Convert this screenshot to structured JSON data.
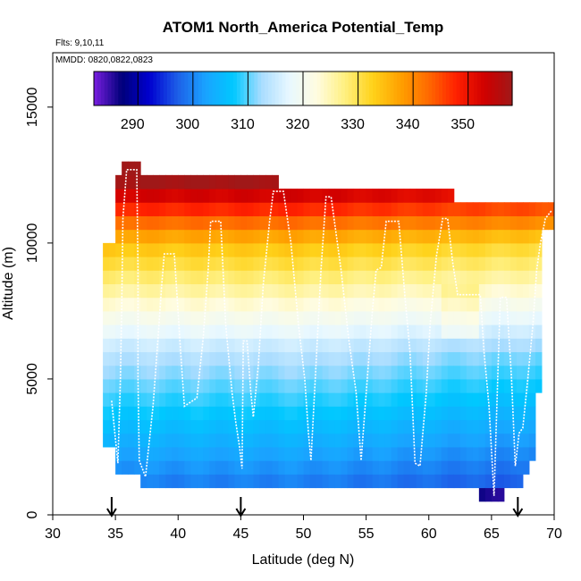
{
  "chart_data": {
    "type": "heatmap",
    "title": "ATOM1 North_America Potential_Temp",
    "flights_label": "Flts: 9,10,11",
    "dates_label": "MMDD: 0820,0822,0823",
    "xlabel": "Latitude (deg N)",
    "ylabel": "Altitude (m)",
    "xlim": [
      30,
      70
    ],
    "ylim": [
      0,
      17000
    ],
    "x_ticks": [
      30,
      35,
      40,
      45,
      50,
      55,
      60,
      65,
      70
    ],
    "y_ticks": [
      0,
      5000,
      10000,
      15000
    ],
    "colorbar": {
      "range": [
        282,
        358
      ],
      "ticks": [
        290,
        300,
        310,
        320,
        330,
        340,
        350
      ],
      "colors": [
        "#7a1fe0",
        "#00007a",
        "#0000d0",
        "#1d5fe8",
        "#1aa3ff",
        "#00c8ff",
        "#a8dcff",
        "#e8f8ff",
        "#fffce0",
        "#fff080",
        "#ffd21a",
        "#ffa000",
        "#ff6a00",
        "#ff2000",
        "#d00000",
        "#a01818"
      ]
    },
    "arrow_latitudes": [
      34.7,
      45,
      67.1
    ],
    "coverage": [
      [
        34,
        2500,
        10000
      ],
      [
        34.5,
        2500,
        10000
      ],
      [
        35,
        1500,
        12500
      ],
      [
        35.5,
        1500,
        13000
      ],
      [
        36,
        1500,
        13000
      ],
      [
        36.5,
        1500,
        13000
      ],
      [
        37,
        1000,
        12500
      ],
      [
        37.5,
        1000,
        12500
      ],
      [
        38,
        1000,
        12500
      ],
      [
        38.5,
        1000,
        12500
      ],
      [
        39,
        1000,
        12500
      ],
      [
        39.5,
        1000,
        12500
      ],
      [
        40,
        1000,
        12500
      ],
      [
        40.5,
        1000,
        12500
      ],
      [
        41,
        1000,
        12500
      ],
      [
        41.5,
        1000,
        12500
      ],
      [
        42,
        1000,
        12500
      ],
      [
        42.5,
        1000,
        12500
      ],
      [
        43,
        1000,
        12500
      ],
      [
        43.5,
        1000,
        12500
      ],
      [
        44,
        1000,
        12500
      ],
      [
        44.5,
        1000,
        12500
      ],
      [
        45,
        1000,
        12500
      ],
      [
        45.5,
        1000,
        12500
      ],
      [
        46,
        1000,
        12500
      ],
      [
        46.5,
        1000,
        12500
      ],
      [
        47,
        1000,
        12500
      ],
      [
        47.5,
        1000,
        12500
      ],
      [
        48,
        1000,
        12000
      ],
      [
        48.5,
        1000,
        12000
      ],
      [
        49,
        1000,
        12000
      ],
      [
        49.5,
        1000,
        12000
      ],
      [
        50,
        1000,
        12000
      ],
      [
        50.5,
        1000,
        12000
      ],
      [
        51,
        1000,
        12000
      ],
      [
        51.5,
        1000,
        12000
      ],
      [
        52,
        1000,
        12000
      ],
      [
        52.5,
        1000,
        12000
      ],
      [
        53,
        1000,
        12000
      ],
      [
        53.5,
        1000,
        12000
      ],
      [
        54,
        1000,
        12000
      ],
      [
        54.5,
        1000,
        12000
      ],
      [
        55,
        1000,
        12000
      ],
      [
        55.5,
        1000,
        12000
      ],
      [
        56,
        1000,
        12000
      ],
      [
        56.5,
        1000,
        12000
      ],
      [
        57,
        1000,
        12000
      ],
      [
        57.5,
        1000,
        12000
      ],
      [
        58,
        1000,
        12000
      ],
      [
        58.5,
        1000,
        12000
      ],
      [
        59,
        1000,
        12000
      ],
      [
        59.5,
        1000,
        12000
      ],
      [
        60,
        1000,
        12000
      ],
      [
        60.5,
        1000,
        12000
      ],
      [
        61,
        1000,
        12000
      ],
      [
        61.5,
        1000,
        12000
      ],
      [
        62,
        1000,
        11500
      ],
      [
        62.5,
        1000,
        11500
      ],
      [
        63,
        1000,
        11500
      ],
      [
        63.5,
        1000,
        11500
      ],
      [
        64,
        500,
        11500
      ],
      [
        64.5,
        500,
        11500
      ],
      [
        65,
        500,
        11500
      ],
      [
        65.5,
        500,
        11500
      ],
      [
        66,
        1000,
        11500
      ],
      [
        66.5,
        1000,
        11500
      ],
      [
        67,
        1000,
        11500
      ],
      [
        67.5,
        1500,
        11500
      ],
      [
        68,
        2000,
        11500
      ],
      [
        68.5,
        4500,
        11500
      ],
      [
        69,
        10500,
        11500
      ],
      [
        69.5,
        10500,
        11500
      ]
    ],
    "flight_track": [
      [
        34.7,
        4200
      ],
      [
        35,
        2800
      ],
      [
        35.2,
        1900
      ],
      [
        35.4,
        5000
      ],
      [
        35.5,
        7500
      ],
      [
        35.6,
        10900
      ],
      [
        35.9,
        12700
      ],
      [
        36.7,
        12700
      ],
      [
        36.8,
        9000
      ],
      [
        36.8,
        5000
      ],
      [
        36.9,
        2000
      ],
      [
        37.4,
        1400
      ],
      [
        38,
        4000
      ],
      [
        38.4,
        6500
      ],
      [
        38.7,
        8500
      ],
      [
        38.9,
        9600
      ],
      [
        39.7,
        9600
      ],
      [
        40.2,
        6000
      ],
      [
        40.5,
        4000
      ],
      [
        41.5,
        4300
      ],
      [
        42,
        6500
      ],
      [
        42.4,
        9000
      ],
      [
        42.6,
        10800
      ],
      [
        43.4,
        10800
      ],
      [
        43.8,
        7000
      ],
      [
        44.3,
        4500
      ],
      [
        44.6,
        3400
      ],
      [
        44.9,
        2500
      ],
      [
        45.1,
        1700
      ],
      [
        45.2,
        6400
      ],
      [
        45.5,
        6400
      ],
      [
        45.8,
        4500
      ],
      [
        46,
        3600
      ],
      [
        46.4,
        5500
      ],
      [
        46.8,
        8500
      ],
      [
        47.3,
        10800
      ],
      [
        47.6,
        11900
      ],
      [
        48.4,
        11900
      ],
      [
        49,
        10000
      ],
      [
        49.6,
        7000
      ],
      [
        50.1,
        5000
      ],
      [
        50.4,
        3000
      ],
      [
        50.6,
        2000
      ],
      [
        51,
        5500
      ],
      [
        51.4,
        9000
      ],
      [
        51.8,
        11700
      ],
      [
        52.2,
        11700
      ],
      [
        53,
        9000
      ],
      [
        53.6,
        6500
      ],
      [
        54.2,
        4500
      ],
      [
        54.6,
        2000
      ],
      [
        55.5,
        7500
      ],
      [
        55.8,
        9000
      ],
      [
        56.2,
        9100
      ],
      [
        56.6,
        10800
      ],
      [
        57.6,
        10800
      ],
      [
        58.1,
        8000
      ],
      [
        58.5,
        6000
      ],
      [
        58.9,
        1900
      ],
      [
        59.3,
        1800
      ],
      [
        59.8,
        4500
      ],
      [
        60.1,
        7000
      ],
      [
        60.6,
        9500
      ],
      [
        61.1,
        10900
      ],
      [
        61.5,
        10900
      ],
      [
        61.9,
        9300
      ],
      [
        62.3,
        8100
      ],
      [
        64.1,
        8100
      ],
      [
        64.4,
        6000
      ],
      [
        64.8,
        4000
      ],
      [
        65.2,
        700
      ],
      [
        65.7,
        8000
      ],
      [
        66.2,
        8000
      ],
      [
        66.6,
        5000
      ],
      [
        66.9,
        1800
      ],
      [
        67.2,
        3000
      ],
      [
        67.5,
        3200
      ],
      [
        67.9,
        5000
      ],
      [
        68.3,
        7000
      ],
      [
        68.6,
        9000
      ],
      [
        68.9,
        10000
      ],
      [
        69.3,
        10900
      ],
      [
        69.8,
        11200
      ]
    ]
  }
}
